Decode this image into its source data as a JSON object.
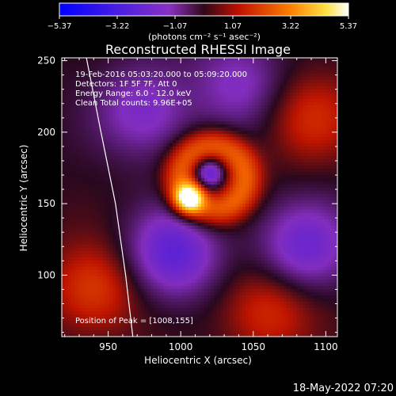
{
  "chart_data": {
    "type": "heatmap",
    "title": "Reconstructed RHESSI Image",
    "xlabel": "Heliocentric X (arcsec)",
    "ylabel": "Heliocentric Y (arcsec)",
    "xlim": [
      918,
      1108
    ],
    "ylim": [
      57,
      252
    ],
    "x_ticks": [
      950,
      1000,
      1050,
      1100
    ],
    "y_ticks": [
      100,
      150,
      200,
      250
    ],
    "colorbar": {
      "range": [
        -5.37,
        5.37
      ],
      "ticks": [
        "−5.37",
        "−3.22",
        "−1.07",
        "1.07",
        "3.22",
        "5.37"
      ],
      "unit_label": "(photons cm⁻² s⁻¹ asec⁻²)",
      "colormap": [
        "#0000ff",
        "#7a1fd0",
        "#2a0a2a",
        "#d01a00",
        "#ff8c00",
        "#ffff40",
        "#ffffff"
      ]
    },
    "info_lines": [
      "19-Feb-2016 05:03:20.000 to 05:09:20.000",
      "Detectors: 1F 5F 7F, Att 0",
      "Energy Range: 6.0 - 12.0 keV",
      "Clean    Total counts: 9.96E+05"
    ],
    "peak": {
      "x": 1008,
      "y": 155,
      "label": "Position of Peak = [1008,155]"
    },
    "features": [
      {
        "kind": "peak",
        "x": 1006,
        "y": 154,
        "value": 5.2
      },
      {
        "kind": "ring",
        "x": 1022,
        "y": 168,
        "value": 2.6
      },
      {
        "kind": "hole",
        "x": 1020,
        "y": 172,
        "value": -0.2
      },
      {
        "kind": "negative_lobe",
        "x": 995,
        "y": 115,
        "value": -2.7
      },
      {
        "kind": "negative_lobe",
        "x": 1085,
        "y": 120,
        "value": -2.3
      },
      {
        "kind": "negative_lobe",
        "x": 975,
        "y": 215,
        "value": -1.9
      },
      {
        "kind": "negative_lobe",
        "x": 1040,
        "y": 235,
        "value": -1.6
      },
      {
        "kind": "positive_lobe",
        "x": 940,
        "y": 90,
        "value": 1.9
      },
      {
        "kind": "positive_lobe",
        "x": 1060,
        "y": 75,
        "value": 1.7
      },
      {
        "kind": "positive_lobe",
        "x": 1090,
        "y": 210,
        "value": 1.5
      }
    ],
    "limb": {
      "color": "#ffffff",
      "points": [
        [
          935,
          252
        ],
        [
          945,
          200
        ],
        [
          955,
          150
        ],
        [
          962,
          100
        ],
        [
          967,
          57
        ]
      ]
    }
  },
  "footer": {
    "timestamp": "18-May-2022 07:20"
  }
}
